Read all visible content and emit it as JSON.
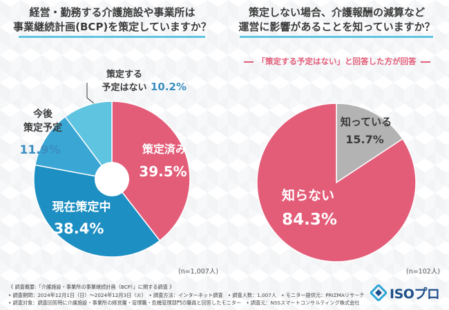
{
  "colors": {
    "pink": "#e35d79",
    "blue_dark": "#1e8fc2",
    "blue_mid": "#2aa3d3",
    "blue_light": "#5fc4e0",
    "gray": "#b3b3b3",
    "title_text": "#3a3a3a",
    "underline": "#5fc4e0"
  },
  "chart_data": [
    {
      "type": "pie",
      "title": "経営・勤務する介護施設や事業所は\n事業継続計画(BCP)を策定していますか？",
      "title_lines": [
        "経営・勤務する介護施設や事業所は",
        "事業継続計画(BCP)を策定していますか？"
      ],
      "donut": true,
      "slices": [
        {
          "label": "策定済み",
          "value": 39.5,
          "display": "39.5%",
          "color": "#e35d79"
        },
        {
          "label": "現在策定中",
          "value": 38.4,
          "display": "38.4%",
          "color": "#1e8fc2"
        },
        {
          "label": "今後\n策定予定",
          "label_lines": [
            "今後",
            "策定予定"
          ],
          "value": 11.9,
          "display": "11.9%",
          "color": "#3aa6d4"
        },
        {
          "label": "策定する\n予定はない",
          "label_lines": [
            "策定する",
            "予定はない"
          ],
          "value": 10.2,
          "display": "10.2%",
          "color": "#5fc4e0"
        }
      ],
      "n": "(n=1,007人)"
    },
    {
      "type": "pie",
      "title": "策定しない場合、介護報酬の減算など\n運営に影響があることを知っていますか？",
      "title_lines": [
        "策定しない場合、介護報酬の減算など",
        "運営に影響があることを知っていますか？"
      ],
      "subtitle": "「策定する予定はない」と回答した方が回答",
      "donut": false,
      "slices": [
        {
          "label": "知っている",
          "value": 15.7,
          "display": "15.7%",
          "color": "#b3b3b3"
        },
        {
          "label": "知らない",
          "value": 84.3,
          "display": "84.3%",
          "color": "#e35d79"
        }
      ],
      "n": "(n=102人)"
    }
  ],
  "footer": {
    "lines": [
      "《 調査概要:「介護施設・事業所の事業継続計画（BCP）」に関する調査 》",
      "• 調査期間：2024年12月1日（日）～2024年12月3日（火）　• 調査方法：インターネット調査　• 調査人数：1,007人　• モニター提供元：PRIZMAリサーチ",
      "• 調査対象：調査回答時に介護施設・事業所の経営層・管理職・危機管理部門の職員と回答したモニター　• 調査元：NSSスマートコンサルティング株式会社"
    ]
  },
  "logo": {
    "text": "ISOプロ",
    "icon": "iso-diamond-icon"
  }
}
